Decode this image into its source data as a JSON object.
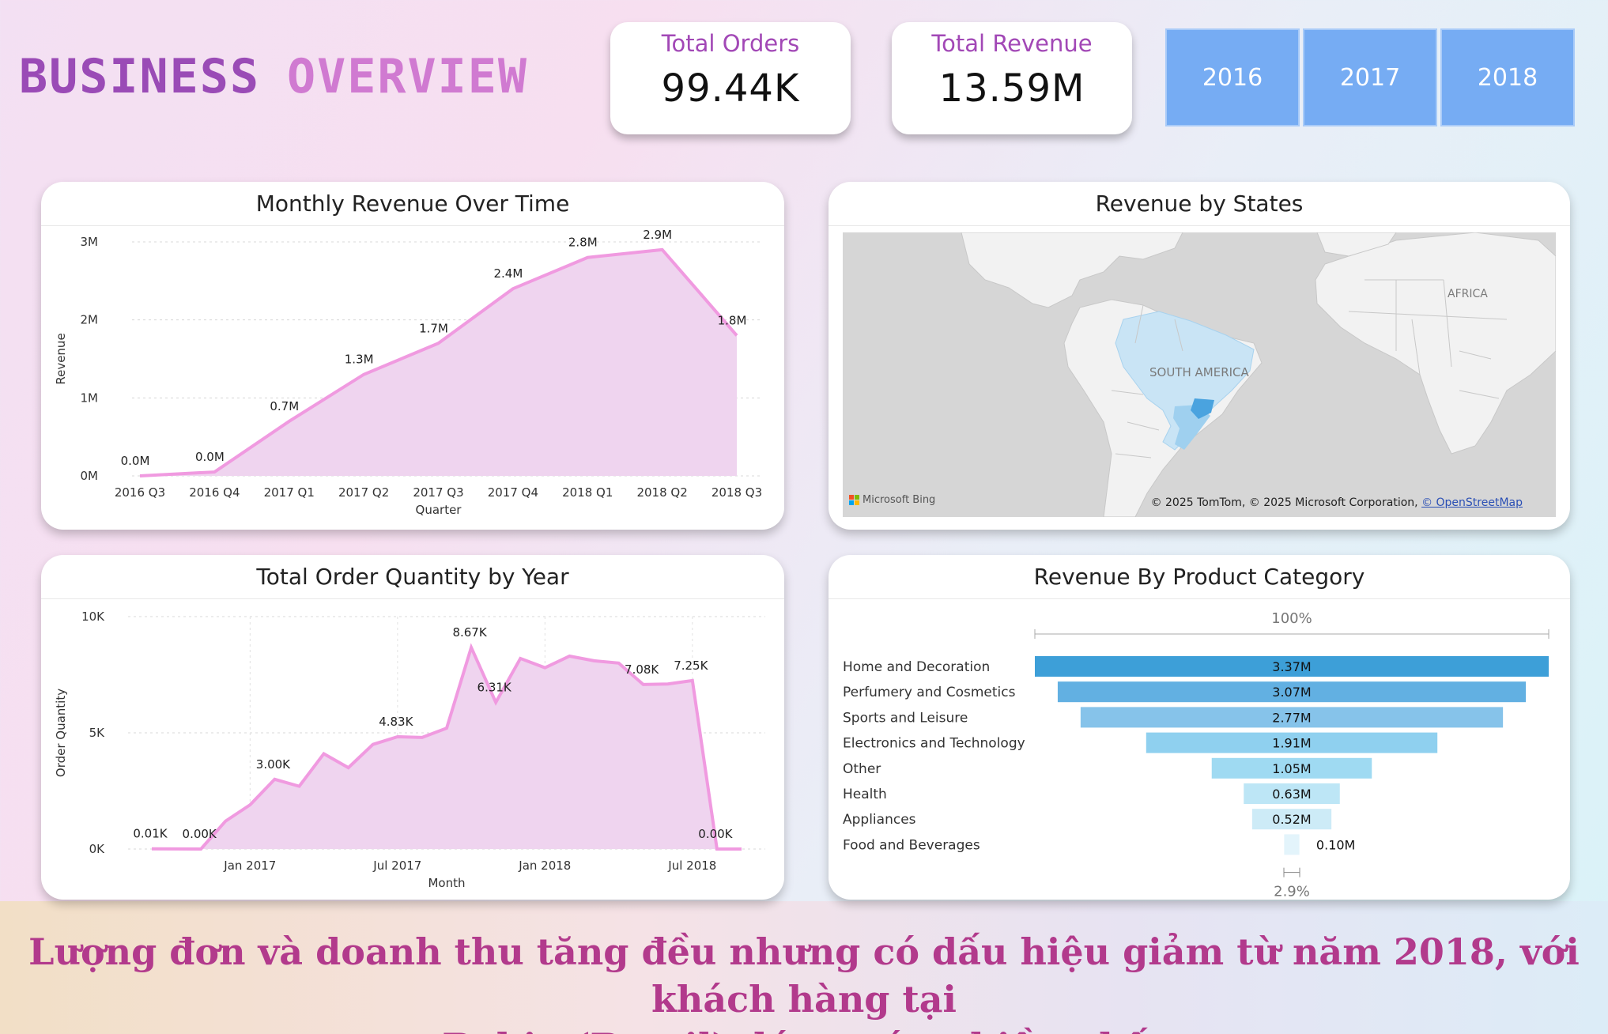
{
  "header": {
    "title_word1": "BUSINESS",
    "title_word2": "OVERVIEW"
  },
  "kpis": [
    {
      "label": "Total Orders",
      "value": "99.44K"
    },
    {
      "label": "Total Revenue",
      "value": "13.59M"
    }
  ],
  "year_filters": [
    "2016",
    "2017",
    "2018"
  ],
  "revenue_chart": {
    "title": "Monthly Revenue Over Time"
  },
  "map": {
    "title": "Revenue by States",
    "labels": {
      "south_america": "SOUTH AMERICA",
      "africa": "AFRICA"
    },
    "attribution_brand": "Microsoft Bing",
    "copyright": "© 2025 TomTom, © 2025 Microsoft Corporation,",
    "osm_link": "© OpenStreetMap",
    "colors": {
      "land": "#f2f2f2",
      "water": "#d6d6d6",
      "brazil": "#c9e4f5",
      "highlight": "#4aa3df",
      "south_states": "#9fd0ef"
    }
  },
  "orders_chart": {
    "title": "Total Order Quantity by Year"
  },
  "category_chart": {
    "title": "Revenue By Product Category",
    "top_pct": "100%",
    "bottom_pct": "2.9%"
  },
  "chart_data": [
    {
      "type": "area",
      "title": "Monthly Revenue Over Time",
      "xlabel": "Quarter",
      "ylabel": "Revenue",
      "categories": [
        "2016 Q3",
        "2016 Q4",
        "2017 Q1",
        "2017 Q2",
        "2017 Q3",
        "2017 Q4",
        "2018 Q1",
        "2018 Q2",
        "2018 Q3"
      ],
      "values": [
        0.0,
        0.05,
        0.7,
        1.3,
        1.7,
        2.4,
        2.8,
        2.9,
        1.8
      ],
      "data_labels": [
        "0.0M",
        "0.0M",
        "0.7M",
        "1.3M",
        "1.7M",
        "2.4M",
        "2.8M",
        "2.9M",
        "1.8M"
      ],
      "yticks": [
        "0M",
        "1M",
        "2M",
        "3M"
      ],
      "ylim": [
        0,
        3
      ],
      "grid": true,
      "color": "#f09ae0"
    },
    {
      "type": "area",
      "title": "Total Order Quantity by Year",
      "xlabel": "Month",
      "ylabel": "Order Quantity",
      "x": [
        "2016-09",
        "2016-10",
        "2016-11",
        "2016-12",
        "2017-01",
        "2017-02",
        "2017-03",
        "2017-04",
        "2017-05",
        "2017-06",
        "2017-07",
        "2017-08",
        "2017-09",
        "2017-10",
        "2017-11",
        "2017-12",
        "2018-01",
        "2018-02",
        "2018-03",
        "2018-04",
        "2018-05",
        "2018-06",
        "2018-07",
        "2018-08",
        "2018-09"
      ],
      "values": [
        0.01,
        null,
        0.0,
        1.2,
        1.9,
        3.0,
        2.7,
        4.1,
        3.5,
        4.5,
        4.83,
        4.8,
        5.2,
        8.67,
        6.31,
        8.2,
        7.8,
        8.3,
        8.1,
        8.0,
        7.08,
        7.1,
        7.25,
        0.0,
        0.0
      ],
      "data_labels": [
        {
          "i": 0,
          "t": "0.01K"
        },
        {
          "i": 2,
          "t": "0.00K"
        },
        {
          "i": 5,
          "t": "3.00K"
        },
        {
          "i": 10,
          "t": "4.83K"
        },
        {
          "i": 13,
          "t": "8.67K"
        },
        {
          "i": 14,
          "t": "6.31K"
        },
        {
          "i": 20,
          "t": "7.08K"
        },
        {
          "i": 22,
          "t": "7.25K"
        },
        {
          "i": 23,
          "t": "0.00K"
        }
      ],
      "xticks": [
        {
          "i": 4,
          "t": "Jan 2017"
        },
        {
          "i": 10,
          "t": "Jul 2017"
        },
        {
          "i": 16,
          "t": "Jan 2018"
        },
        {
          "i": 22,
          "t": "Jul 2018"
        }
      ],
      "yticks": [
        "0K",
        "5K",
        "10K"
      ],
      "ylim": [
        0,
        10
      ],
      "grid": true,
      "color": "#f09ae0"
    },
    {
      "type": "funnel",
      "title": "Revenue By Product Category",
      "categories": [
        "Home and Decoration",
        "Perfumery and Cosmetics",
        "Sports and Leisure",
        "Electronics and Technology",
        "Other",
        "Health",
        "Appliances",
        "Food and Beverages"
      ],
      "values": [
        3.37,
        3.07,
        2.77,
        1.91,
        1.05,
        0.63,
        0.52,
        0.1
      ],
      "data_labels": [
        "3.37M",
        "3.07M",
        "2.77M",
        "1.91M",
        "1.05M",
        "0.63M",
        "0.52M",
        "0.10M"
      ],
      "colors": [
        "#3d9fd8",
        "#62b0e2",
        "#86c3ea",
        "#8fd0ef",
        "#9fdaf2",
        "#bde6f6",
        "#cdebf7",
        "#e3f4fb"
      ]
    }
  ],
  "footer": {
    "line1": "Lượng đơn và doanh thu tăng đều nhưng có dấu hiệu giảm từ năm 2018, với khách hàng tại",
    "line2": "Bahia (Brazil) đóng góp nhiều nhất"
  }
}
